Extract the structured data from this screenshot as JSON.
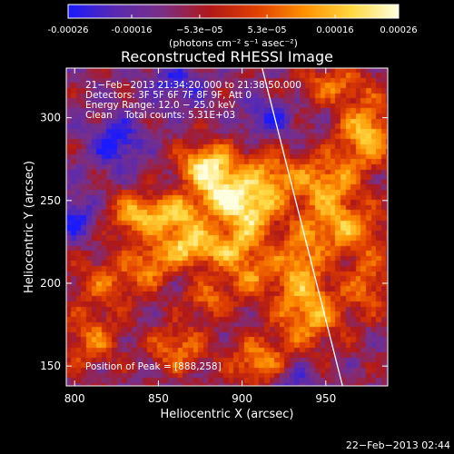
{
  "colorbar": {
    "ticks": [
      "-0.00026",
      "-0.00016",
      "−5.3e−05",
      "5.3e−05",
      "0.00016",
      "0.00026"
    ],
    "tick_values": [
      -0.00026,
      -0.00016,
      -5.3e-05,
      5.3e-05,
      0.00016,
      0.00026
    ],
    "range": [
      -0.00026,
      0.00026
    ],
    "unit_label": "(photons cm⁻² s⁻¹ asec⁻²)"
  },
  "info": {
    "line1": "21−Feb−2013 21:34:20.000 to 21:38:50.000",
    "line2": "Detectors: 3F 5F 6F 7F 8F 9F, Att 0",
    "line3": "Energy Range: 12.0 − 25.0 keV",
    "line4": "Clean    Total counts: 5.31E+03",
    "peak": "Position of Peak = [888,258]"
  },
  "footer": {
    "timestamp": "22−Feb−2013 02:44"
  },
  "chart_data": {
    "type": "heatmap",
    "title": "Reconstructed RHESSI Image",
    "xlabel": "Heliocentric X (arcsec)",
    "ylabel": "Heliocentric Y (arcsec)",
    "xlim": [
      795,
      987
    ],
    "ylim": [
      138,
      330
    ],
    "x_ticks": [
      800,
      850,
      900,
      950
    ],
    "y_ticks": [
      150,
      200,
      250,
      300
    ],
    "grid": false,
    "colormap": [
      "#1a1aff",
      "#5a2ab0",
      "#7a2f85",
      "#b01818",
      "#e04000",
      "#ff9000",
      "#ffd840",
      "#ffffe0"
    ],
    "peak_position": [
      888,
      258
    ],
    "limb_line": [
      [
        912,
        330
      ],
      [
        960,
        138
      ]
    ],
    "intensity_blobs": [
      {
        "x": 880,
        "y": 270,
        "sx": 12,
        "sy": 10,
        "a": 1.0
      },
      {
        "x": 890,
        "y": 252,
        "sx": 10,
        "sy": 8,
        "a": 0.8
      },
      {
        "x": 860,
        "y": 242,
        "sx": 14,
        "sy": 8,
        "a": 0.75
      },
      {
        "x": 835,
        "y": 240,
        "sx": 10,
        "sy": 10,
        "a": 0.6
      },
      {
        "x": 865,
        "y": 222,
        "sx": 12,
        "sy": 9,
        "a": 0.7
      },
      {
        "x": 915,
        "y": 262,
        "sx": 12,
        "sy": 12,
        "a": 0.7
      },
      {
        "x": 905,
        "y": 240,
        "sx": 10,
        "sy": 10,
        "a": 0.75
      },
      {
        "x": 890,
        "y": 222,
        "sx": 14,
        "sy": 8,
        "a": 0.6
      },
      {
        "x": 905,
        "y": 205,
        "sx": 12,
        "sy": 10,
        "a": 0.55
      },
      {
        "x": 950,
        "y": 260,
        "sx": 14,
        "sy": 12,
        "a": 0.7
      },
      {
        "x": 975,
        "y": 290,
        "sx": 12,
        "sy": 14,
        "a": 0.8
      },
      {
        "x": 960,
        "y": 233,
        "sx": 18,
        "sy": 10,
        "a": 0.7
      },
      {
        "x": 935,
        "y": 212,
        "sx": 10,
        "sy": 12,
        "a": 0.6
      },
      {
        "x": 940,
        "y": 182,
        "sx": 14,
        "sy": 14,
        "a": 0.75
      },
      {
        "x": 975,
        "y": 200,
        "sx": 10,
        "sy": 14,
        "a": 0.5
      },
      {
        "x": 910,
        "y": 152,
        "sx": 12,
        "sy": 10,
        "a": 0.65
      },
      {
        "x": 862,
        "y": 160,
        "sx": 12,
        "sy": 10,
        "a": 0.55
      },
      {
        "x": 820,
        "y": 200,
        "sx": 16,
        "sy": 12,
        "a": 0.45
      },
      {
        "x": 810,
        "y": 165,
        "sx": 12,
        "sy": 12,
        "a": 0.5
      },
      {
        "x": 880,
        "y": 190,
        "sx": 10,
        "sy": 8,
        "a": 0.45
      },
      {
        "x": 845,
        "y": 210,
        "sx": 8,
        "sy": 8,
        "a": 0.5
      },
      {
        "x": 955,
        "y": 320,
        "sx": 16,
        "sy": 8,
        "a": 0.5
      },
      {
        "x": 825,
        "y": 285,
        "sx": 10,
        "sy": 10,
        "a": -0.55
      },
      {
        "x": 915,
        "y": 300,
        "sx": 10,
        "sy": 8,
        "a": -0.45
      },
      {
        "x": 800,
        "y": 240,
        "sx": 8,
        "sy": 10,
        "a": -0.5
      },
      {
        "x": 860,
        "y": 320,
        "sx": 12,
        "sy": 10,
        "a": -0.4
      },
      {
        "x": 930,
        "y": 140,
        "sx": 10,
        "sy": 8,
        "a": -0.35
      }
    ]
  }
}
